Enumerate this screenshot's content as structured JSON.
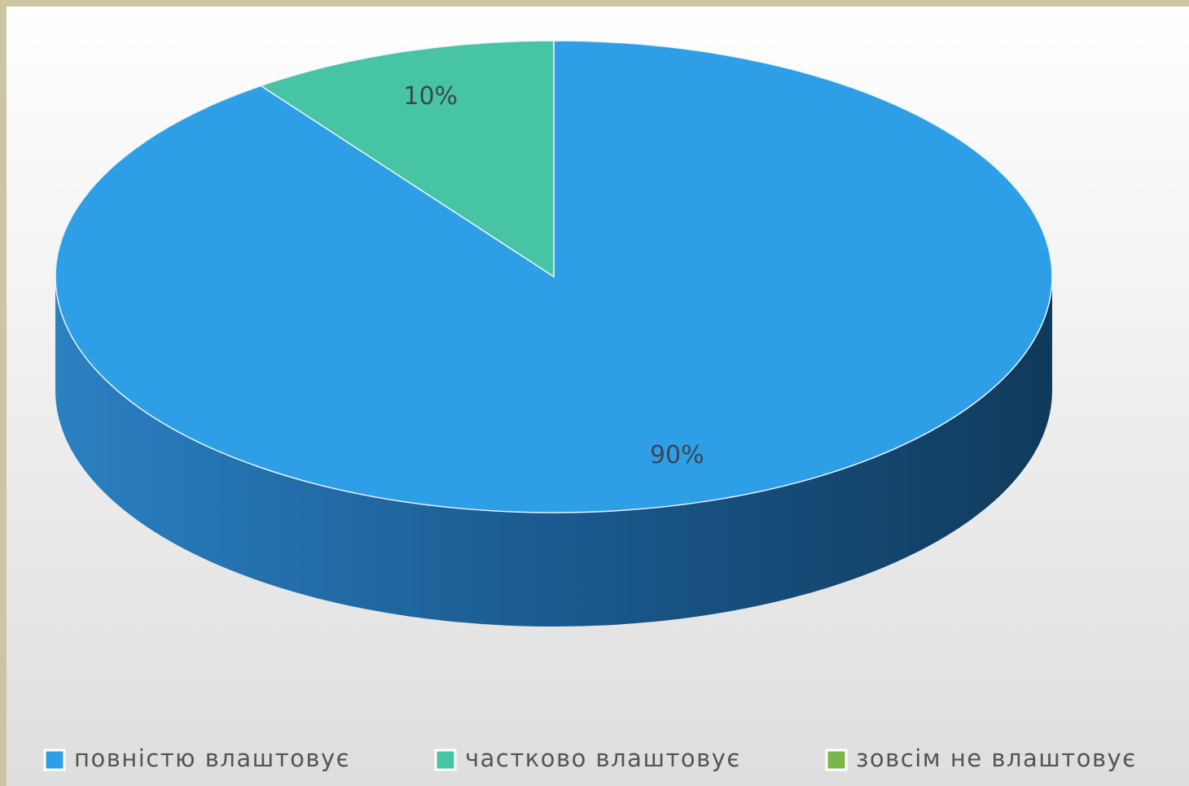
{
  "chart_data": {
    "type": "pie3d",
    "categories": [
      "повністю влаштовує",
      "частково влаштовує",
      "зовсім не влаштовує"
    ],
    "values": [
      90,
      10,
      0
    ],
    "value_labels": [
      "90%",
      "10%",
      null
    ],
    "colors": [
      "#2e9fe6",
      "#47c4a4",
      "#7ab648"
    ],
    "legend": "bottom"
  }
}
